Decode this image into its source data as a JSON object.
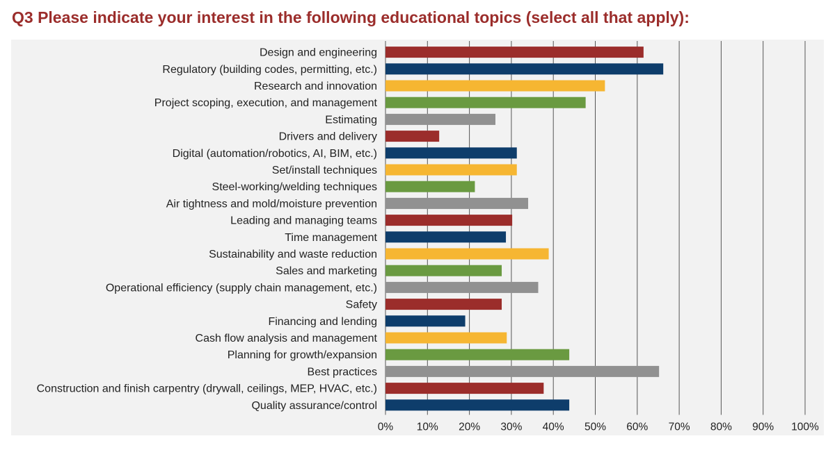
{
  "title": "Q3 Please indicate your interest in the following educational topics (select all that apply):",
  "chart_data": {
    "type": "bar",
    "orientation": "horizontal",
    "title": "Q3 Please indicate your interest in the following educational topics (select all that apply):",
    "xlabel": "",
    "ylabel": "",
    "xlim": [
      0,
      100
    ],
    "grid": "vertical lines at each tick",
    "legend": "none",
    "x_ticks": [
      "0%",
      "10%",
      "20%",
      "30%",
      "40%",
      "50%",
      "60%",
      "70%",
      "80%",
      "90%",
      "100%"
    ],
    "categories": [
      "Design and engineering",
      "Regulatory (building codes, permitting, etc.)",
      "Research and innovation",
      "Project scoping, execution, and management",
      "Estimating",
      "Drivers and delivery",
      "Digital (automation/robotics, AI, BIM, etc.)",
      "Set/install techniques",
      "Steel-working/welding techniques",
      "Air tightness and mold/moisture prevention",
      "Leading and managing teams",
      "Time management",
      "Sustainability and waste reduction",
      "Sales and marketing",
      "Operational efficiency (supply chain management, etc.)",
      "Safety",
      "Financing and lending",
      "Cash flow analysis and management",
      "Planning for growth/expansion",
      "Best practices",
      "Construction and finish carpentry (drywall, ceilings, MEP, HVAC, etc.)",
      "Quality assurance/control"
    ],
    "values": [
      61.5,
      66.2,
      52.3,
      47.7,
      26.2,
      12.8,
      31.3,
      31.3,
      21.3,
      34,
      30.2,
      28.7,
      38.9,
      27.7,
      36.4,
      27.7,
      19,
      28.9,
      43.8,
      65.2,
      37.7,
      43.8
    ],
    "bar_colors": [
      "#9b2d2b",
      "#0e3d6b",
      "#f6b632",
      "#6a9a41",
      "#919191"
    ],
    "colors": {
      "maroon": "#9b2d2b",
      "navy": "#0e3d6b",
      "gold": "#f6b632",
      "green": "#6a9a41",
      "gray": "#919191",
      "title": "#9b2d2b",
      "panel_background": "#f2f2f2"
    }
  }
}
